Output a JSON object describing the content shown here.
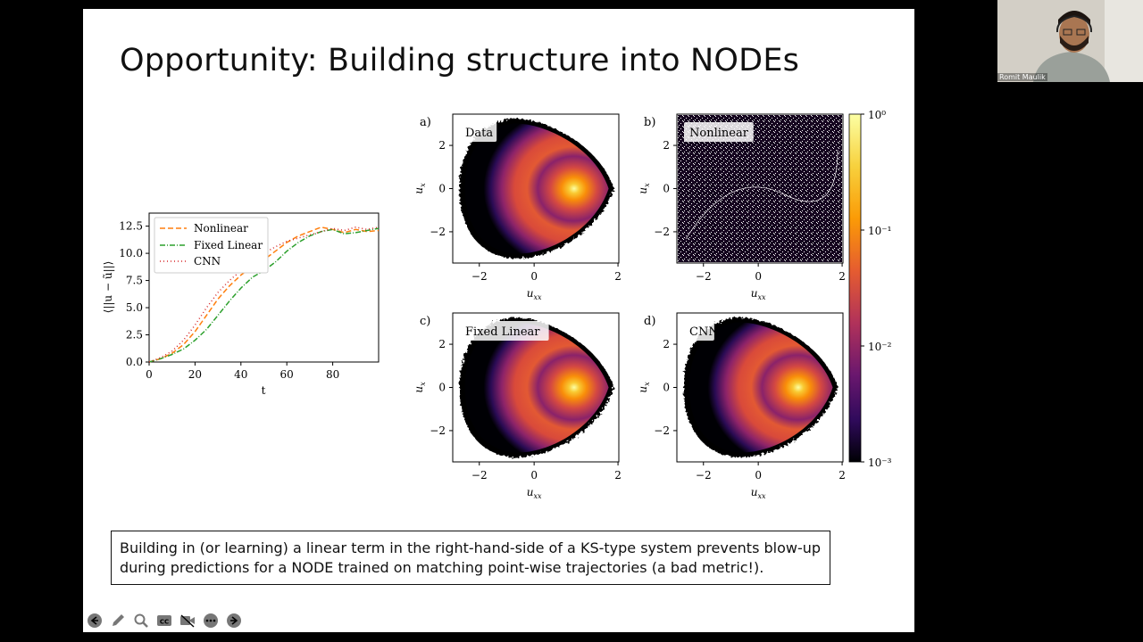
{
  "slide": {
    "title": "Opportunity: Building structure into NODEs",
    "caption_line1": "Building in (or learning) a linear term in the right-hand-side of a KS-type system prevents blow-up",
    "caption_line2": "during predictions for a NODE trained on matching point-wise trajectories (a bad metric!)."
  },
  "chart_data": [
    {
      "type": "line",
      "ylabel": "⟨||u − ũ||⟩",
      "xlabel": "t",
      "xticks": [
        "0",
        "20",
        "40",
        "60",
        "80"
      ],
      "yticks": [
        "0.0",
        "2.5",
        "5.0",
        "7.5",
        "10.0",
        "12.5"
      ],
      "xlim": [
        0,
        100
      ],
      "ylim": [
        0,
        13.7
      ],
      "legend_position": "top-left",
      "series": [
        {
          "name": "Nonlinear",
          "color": "#ff7f0e",
          "dash": "dashed",
          "x": [
            0,
            5,
            10,
            15,
            20,
            25,
            30,
            35,
            40,
            45,
            50,
            55,
            60,
            65,
            70,
            75,
            80,
            85,
            90,
            95,
            100
          ],
          "y": [
            0,
            0.3,
            0.8,
            1.6,
            2.8,
            4.3,
            5.8,
            7.0,
            8.0,
            8.8,
            9.4,
            10.2,
            11.0,
            11.6,
            12.0,
            12.4,
            12.2,
            11.9,
            12.2,
            12.0,
            12.1
          ]
        },
        {
          "name": "Fixed Linear",
          "color": "#2ca02c",
          "dash": "dashdot",
          "x": [
            0,
            5,
            10,
            15,
            20,
            25,
            30,
            35,
            40,
            45,
            50,
            55,
            60,
            65,
            70,
            75,
            80,
            85,
            90,
            95,
            100
          ],
          "y": [
            0,
            0.3,
            0.7,
            1.2,
            2.0,
            3.0,
            4.3,
            5.6,
            6.8,
            7.8,
            8.4,
            9.2,
            10.2,
            11.0,
            11.6,
            12.0,
            12.2,
            11.8,
            11.9,
            12.1,
            12.3
          ]
        },
        {
          "name": "CNN",
          "color": "#d62728",
          "dash": "dotted",
          "x": [
            0,
            5,
            10,
            15,
            20,
            25,
            30,
            35,
            40,
            45,
            50,
            55,
            60,
            65,
            70,
            75,
            80,
            85,
            90,
            95,
            100
          ],
          "y": [
            0,
            0.4,
            1.0,
            2.0,
            3.4,
            5.0,
            6.4,
            7.5,
            8.4,
            9.2,
            10.0,
            10.6,
            11.1,
            11.4,
            11.7,
            12.0,
            12.3,
            12.1,
            12.4,
            12.2,
            12.4
          ]
        }
      ]
    },
    {
      "type": "heatmap",
      "panels": [
        {
          "label": "a)",
          "name": "Data",
          "style": "smooth"
        },
        {
          "label": "b)",
          "name": "Nonlinear",
          "style": "noise"
        },
        {
          "label": "c)",
          "name": "Fixed Linear",
          "style": "smooth"
        },
        {
          "label": "d)",
          "name": "CNN",
          "style": "smooth"
        }
      ],
      "xlabel": "u_xx",
      "ylabel": "u_x",
      "xticks": [
        "−2",
        "0",
        "2"
      ],
      "yticks": [
        "2",
        "0",
        "−2"
      ],
      "colorbar": {
        "ticks": [
          "10⁰",
          "10⁻¹",
          "10⁻²",
          "10⁻³"
        ],
        "scale": "log"
      }
    }
  ],
  "toolbar": [
    "prev-icon",
    "pen-icon",
    "zoom-icon",
    "cc-icon",
    "video-icon",
    "more-icon",
    "next-icon"
  ],
  "webcam": {
    "name": "Romit Maulik"
  }
}
